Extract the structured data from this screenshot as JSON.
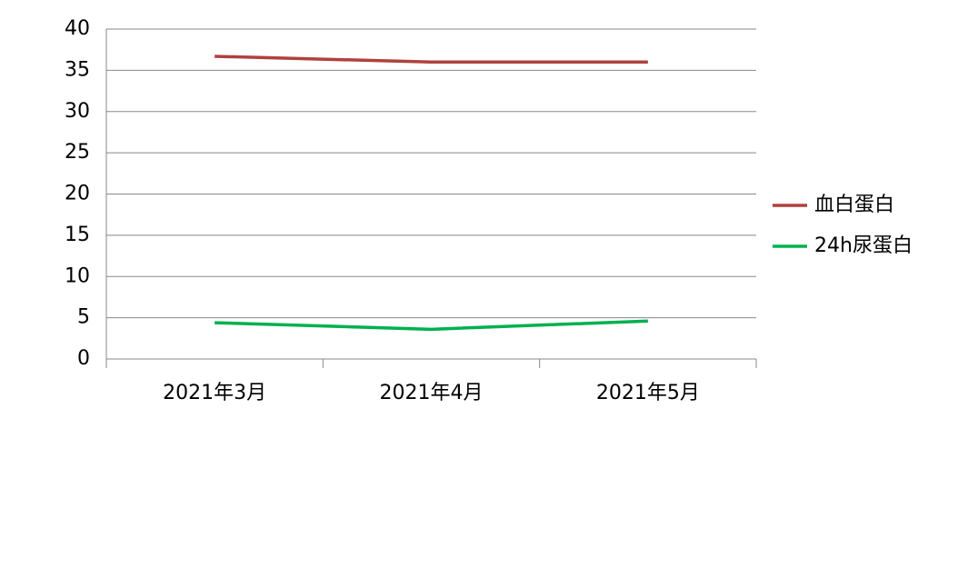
{
  "chart_data": {
    "type": "line",
    "categories": [
      "2021年3月",
      "2021年4月",
      "2021年5月"
    ],
    "series": [
      {
        "name": "血白蛋白",
        "color": "#b0413e",
        "values": [
          36.7,
          36.0,
          36.0
        ]
      },
      {
        "name": "24h尿蛋白",
        "color": "#00b050",
        "values": [
          4.4,
          3.6,
          4.6
        ]
      }
    ],
    "ylim": [
      0,
      40
    ],
    "yticks": [
      0,
      5,
      10,
      15,
      20,
      25,
      30,
      35,
      40
    ],
    "grid": true,
    "legend": "right"
  }
}
